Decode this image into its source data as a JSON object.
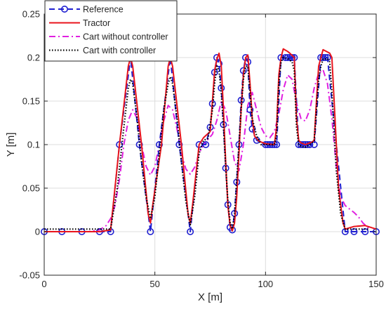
{
  "chart_data": {
    "type": "line",
    "title": "",
    "xlabel": "X [m]",
    "ylabel": "Y [m]",
    "xlim": [
      0,
      150
    ],
    "ylim": [
      -0.05,
      0.25
    ],
    "xticks": [
      0,
      50,
      100,
      150
    ],
    "yticks": [
      -0.05,
      0,
      0.05,
      0.1,
      0.15,
      0.2,
      0.25
    ],
    "xtick_labels": [
      "0",
      "50",
      "100",
      "150"
    ],
    "ytick_labels": [
      "-0.05",
      "0",
      "0.05",
      "0.1",
      "0.15",
      "0.2",
      "0.25"
    ],
    "grid": true,
    "legend_position": "top-left",
    "series": [
      {
        "name": "Reference",
        "color": "#1f1fd0",
        "style": "dashed-circles",
        "x": [
          0,
          8,
          17,
          25,
          30,
          34,
          39,
          43,
          48,
          52,
          57,
          61,
          66,
          70,
          73,
          75,
          76,
          77,
          78,
          79,
          80,
          81,
          82,
          83,
          84,
          85,
          86,
          87,
          88,
          89,
          90,
          91,
          92,
          93,
          94,
          96,
          100,
          101,
          102,
          103,
          104,
          105,
          107,
          109,
          110,
          111,
          112,
          113,
          115,
          116,
          117,
          118,
          119,
          120,
          122,
          125,
          126,
          127,
          128,
          136,
          140,
          145,
          150
        ],
        "y": [
          0,
          0,
          0,
          0,
          0,
          0.1,
          0.2,
          0.1,
          0,
          0.1,
          0.2,
          0.1,
          0,
          0.1,
          0.1,
          0.12,
          0.147,
          0.183,
          0.2,
          0.193,
          0.165,
          0.123,
          0.073,
          0.031,
          0.005,
          0.002,
          0.021,
          0.057,
          0.1,
          0.151,
          0.185,
          0.2,
          0.195,
          0.14,
          0.118,
          0.105,
          0.1,
          0.1,
          0.1,
          0.1,
          0.1,
          0.1,
          0.2,
          0.2,
          0.2,
          0.2,
          0.2,
          0.2,
          0.1,
          0.1,
          0.1,
          0.1,
          0.1,
          0.1,
          0.1,
          0.2,
          0.2,
          0.2,
          0.2,
          0,
          0,
          0,
          0
        ]
      },
      {
        "name": "Tractor",
        "color": "#e8141c",
        "style": "solid",
        "x": [
          0,
          25,
          30,
          34,
          38,
          39,
          40,
          44,
          47,
          48,
          49,
          53,
          56,
          57,
          58,
          62,
          65,
          66,
          67,
          70,
          72,
          75,
          76,
          77,
          78,
          79,
          80,
          81,
          82,
          83,
          84,
          85,
          86,
          87,
          88,
          89,
          90,
          91,
          92,
          93,
          94,
          95,
          97,
          100,
          104,
          105,
          106,
          107,
          108,
          110,
          111,
          113,
          114,
          115,
          116,
          118,
          120,
          121,
          122,
          123,
          124,
          126,
          129,
          130,
          131,
          133,
          135,
          136,
          140,
          145,
          150
        ],
        "y": [
          0,
          0,
          0.002,
          0.1,
          0.19,
          0.2,
          0.19,
          0.1,
          0.02,
          0.01,
          0.03,
          0.1,
          0.19,
          0.2,
          0.19,
          0.1,
          0.02,
          0.01,
          0.03,
          0.1,
          0.108,
          0.115,
          0.15,
          0.185,
          0.198,
          0.205,
          0.19,
          0.14,
          0.08,
          0.03,
          0.007,
          0.001,
          0.01,
          0.04,
          0.09,
          0.14,
          0.18,
          0.2,
          0.203,
          0.17,
          0.13,
          0.11,
          0.104,
          0.101,
          0.1,
          0.12,
          0.18,
          0.2,
          0.21,
          0.207,
          0.205,
          0.2,
          0.13,
          0.105,
          0.102,
          0.1,
          0.102,
          0.103,
          0.105,
          0.15,
          0.19,
          0.209,
          0.205,
          0.2,
          0.15,
          0.05,
          0.01,
          0.003,
          0.006,
          0.007,
          0.003
        ]
      },
      {
        "name": "Cart without controller",
        "color": "#e020e0",
        "style": "dash-dot",
        "x": [
          0,
          20,
          25,
          28,
          30,
          32,
          34,
          36,
          38,
          40,
          42,
          44,
          46,
          48,
          50,
          52,
          54,
          56,
          58,
          60,
          62,
          64,
          66,
          68,
          70,
          72,
          74,
          76,
          78,
          80,
          82,
          84,
          86,
          88,
          90,
          92,
          94,
          96,
          98,
          100,
          102,
          104,
          106,
          108,
          110,
          112,
          114,
          116,
          118,
          120,
          122,
          124,
          126,
          128,
          130,
          132,
          134,
          136,
          138,
          140,
          142,
          144,
          147
        ],
        "y": [
          0,
          0,
          0.002,
          0.007,
          0.015,
          0.03,
          0.06,
          0.1,
          0.128,
          0.14,
          0.13,
          0.1,
          0.075,
          0.065,
          0.075,
          0.1,
          0.127,
          0.145,
          0.14,
          0.118,
          0.09,
          0.072,
          0.066,
          0.074,
          0.09,
          0.1,
          0.106,
          0.112,
          0.128,
          0.15,
          0.14,
          0.11,
          0.08,
          0.07,
          0.1,
          0.145,
          0.16,
          0.14,
          0.12,
          0.11,
          0.108,
          0.115,
          0.135,
          0.163,
          0.18,
          0.175,
          0.148,
          0.13,
          0.127,
          0.14,
          0.165,
          0.182,
          0.186,
          0.17,
          0.13,
          0.075,
          0.04,
          0.03,
          0.026,
          0.022,
          0.017,
          0.01,
          0.003
        ]
      },
      {
        "name": "Cart with controller",
        "color": "#000000",
        "style": "dotted",
        "x": [
          0,
          25,
          30,
          33,
          36,
          38,
          39,
          40,
          42,
          44,
          46,
          48,
          50,
          52,
          54,
          56,
          57,
          58,
          60,
          62,
          64,
          66,
          68,
          70,
          72,
          74,
          76,
          77,
          78,
          79,
          80,
          81,
          82,
          83,
          84,
          85,
          86,
          87,
          88,
          89,
          90,
          91,
          92,
          93,
          94,
          96,
          98,
          100,
          104,
          105,
          106,
          107,
          108,
          110,
          112,
          113,
          114,
          115,
          116,
          118,
          120,
          121,
          122,
          123,
          124,
          125,
          126,
          128,
          129,
          130,
          132,
          134,
          136,
          140,
          147
        ],
        "y": [
          0.003,
          0.003,
          0.003,
          0.05,
          0.12,
          0.165,
          0.175,
          0.17,
          0.13,
          0.08,
          0.04,
          0.015,
          0.04,
          0.09,
          0.14,
          0.17,
          0.178,
          0.17,
          0.13,
          0.08,
          0.035,
          0.008,
          0.04,
          0.09,
          0.105,
          0.107,
          0.14,
          0.17,
          0.19,
          0.185,
          0.16,
          0.12,
          0.075,
          0.035,
          0.01,
          0.003,
          0.02,
          0.06,
          0.1,
          0.14,
          0.175,
          0.19,
          0.19,
          0.16,
          0.13,
          0.11,
          0.1,
          0.1,
          0.1,
          0.11,
          0.17,
          0.195,
          0.2,
          0.199,
          0.195,
          0.185,
          0.12,
          0.1,
          0.098,
          0.097,
          0.1,
          0.102,
          0.105,
          0.14,
          0.175,
          0.19,
          0.198,
          0.199,
          0.195,
          0.16,
          0.07,
          0.02,
          0.003,
          0.003,
          0.003
        ]
      }
    ]
  }
}
